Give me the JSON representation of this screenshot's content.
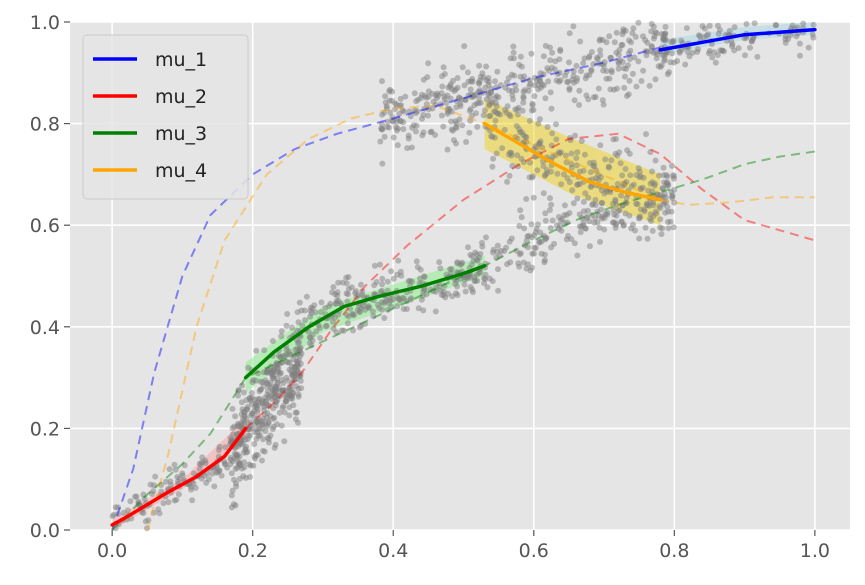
{
  "chart_data": {
    "type": "line",
    "title": "",
    "xlabel": "",
    "ylabel": "",
    "xlim": [
      -0.06,
      1.05
    ],
    "ylim": [
      0.0,
      1.0
    ],
    "grid": true,
    "legend_placement": "upper-left",
    "x_ticks": [
      {
        "value": 0.0,
        "label": "0.0"
      },
      {
        "value": 0.2,
        "label": "0.2"
      },
      {
        "value": 0.4,
        "label": "0.4"
      },
      {
        "value": 0.6,
        "label": "0.6"
      },
      {
        "value": 0.8,
        "label": "0.8"
      },
      {
        "value": 1.0,
        "label": "1.0"
      }
    ],
    "y_ticks": [
      {
        "value": 0.0,
        "label": "0.0"
      },
      {
        "value": 0.2,
        "label": "0.2"
      },
      {
        "value": 0.4,
        "label": "0.4"
      },
      {
        "value": 0.6,
        "label": "0.6"
      },
      {
        "value": 0.8,
        "label": "0.8"
      },
      {
        "value": 1.0,
        "label": "1.0"
      }
    ],
    "series": [
      {
        "name": "mu_1",
        "color": "#0000ff",
        "dashed": [
          [
            0.0,
            0.0
          ],
          [
            0.03,
            0.12
          ],
          [
            0.06,
            0.31
          ],
          [
            0.1,
            0.5
          ],
          [
            0.14,
            0.62
          ],
          [
            0.2,
            0.7
          ],
          [
            0.26,
            0.75
          ],
          [
            0.32,
            0.78
          ],
          [
            0.4,
            0.81
          ],
          [
            0.5,
            0.85
          ],
          [
            0.6,
            0.89
          ],
          [
            0.7,
            0.92
          ],
          [
            0.78,
            0.95
          ]
        ],
        "solid": [
          [
            0.78,
            0.945
          ],
          [
            0.84,
            0.96
          ],
          [
            0.9,
            0.975
          ],
          [
            0.95,
            0.98
          ],
          [
            1.0,
            0.985
          ]
        ],
        "band": [
          [
            0.78,
            0.935,
            0.965
          ],
          [
            0.9,
            0.965,
            0.99
          ],
          [
            1.0,
            0.975,
            1.0
          ]
        ]
      },
      {
        "name": "mu_2",
        "color": "#ff0000",
        "dashed": [
          [
            0.19,
            0.2
          ],
          [
            0.23,
            0.25
          ],
          [
            0.27,
            0.31
          ],
          [
            0.31,
            0.39
          ],
          [
            0.36,
            0.48
          ],
          [
            0.42,
            0.56
          ],
          [
            0.5,
            0.65
          ],
          [
            0.58,
            0.72
          ],
          [
            0.65,
            0.77
          ],
          [
            0.72,
            0.78
          ],
          [
            0.78,
            0.74
          ],
          [
            0.84,
            0.67
          ],
          [
            0.9,
            0.61
          ],
          [
            1.0,
            0.57
          ]
        ],
        "solid": [
          [
            0.0,
            0.01
          ],
          [
            0.02,
            0.025
          ],
          [
            0.05,
            0.05
          ],
          [
            0.08,
            0.075
          ],
          [
            0.12,
            0.105
          ],
          [
            0.16,
            0.145
          ],
          [
            0.19,
            0.2
          ]
        ],
        "band": [
          [
            0.0,
            0.0,
            0.02
          ],
          [
            0.1,
            0.08,
            0.1
          ],
          [
            0.19,
            0.18,
            0.22
          ]
        ]
      },
      {
        "name": "mu_3",
        "color": "#008000",
        "dashed": [
          [
            0.0,
            0.0
          ],
          [
            0.05,
            0.07
          ],
          [
            0.1,
            0.13
          ],
          [
            0.14,
            0.19
          ],
          [
            0.19,
            0.3
          ],
          [
            0.53,
            0.52
          ],
          [
            0.6,
            0.57
          ],
          [
            0.66,
            0.61
          ],
          [
            0.72,
            0.64
          ],
          [
            0.78,
            0.665
          ],
          [
            0.84,
            0.69
          ],
          [
            0.9,
            0.72
          ],
          [
            0.95,
            0.735
          ],
          [
            1.0,
            0.745
          ]
        ],
        "solid": [
          [
            0.19,
            0.3
          ],
          [
            0.23,
            0.35
          ],
          [
            0.28,
            0.4
          ],
          [
            0.33,
            0.44
          ],
          [
            0.38,
            0.46
          ],
          [
            0.44,
            0.48
          ],
          [
            0.5,
            0.505
          ],
          [
            0.53,
            0.52
          ]
        ],
        "band": [
          [
            0.19,
            0.27,
            0.33
          ],
          [
            0.3,
            0.39,
            0.44
          ],
          [
            0.53,
            0.5,
            0.54
          ]
        ]
      },
      {
        "name": "mu_4",
        "color": "#ffa500",
        "dashed": [
          [
            0.05,
            0.0
          ],
          [
            0.08,
            0.15
          ],
          [
            0.12,
            0.4
          ],
          [
            0.16,
            0.57
          ],
          [
            0.22,
            0.7
          ],
          [
            0.28,
            0.77
          ],
          [
            0.34,
            0.81
          ],
          [
            0.4,
            0.83
          ],
          [
            0.46,
            0.835
          ],
          [
            0.53,
            0.8
          ],
          [
            0.78,
            0.65
          ],
          [
            0.82,
            0.64
          ],
          [
            0.88,
            0.645
          ],
          [
            0.94,
            0.655
          ],
          [
            1.0,
            0.655
          ]
        ],
        "solid": [
          [
            0.53,
            0.8
          ],
          [
            0.58,
            0.76
          ],
          [
            0.63,
            0.72
          ],
          [
            0.68,
            0.685
          ],
          [
            0.73,
            0.665
          ],
          [
            0.78,
            0.65
          ]
        ],
        "band": [
          [
            0.53,
            0.75,
            0.85
          ],
          [
            0.655,
            0.66,
            0.77
          ],
          [
            0.78,
            0.6,
            0.7
          ]
        ]
      }
    ],
    "scatter": {
      "color": "#808080",
      "description_clusters": [
        {
          "x": [
            0.0,
            0.19
          ],
          "y_of_x": "mu_2",
          "spread": 0.02,
          "n": 140
        },
        {
          "x": [
            0.17,
            0.27
          ],
          "y": [
            0.15,
            0.42
          ],
          "n": 380
        },
        {
          "x": [
            0.27,
            0.53
          ],
          "y_of_x": "mu_3",
          "spread": 0.025,
          "n": 260
        },
        {
          "x": [
            0.53,
            0.8
          ],
          "y_of_x": "mu_3",
          "spread": 0.03,
          "n": 200
        },
        {
          "x": [
            0.38,
            0.8
          ],
          "y_of_x": "mu_1",
          "spread": 0.035,
          "n": 420
        },
        {
          "x": [
            0.53,
            0.8
          ],
          "y_of_x": "mu_4",
          "spread": 0.05,
          "n": 240
        },
        {
          "x": [
            0.78,
            1.0
          ],
          "y_of_x": "mu_1",
          "spread": 0.02,
          "n": 120
        }
      ]
    }
  }
}
